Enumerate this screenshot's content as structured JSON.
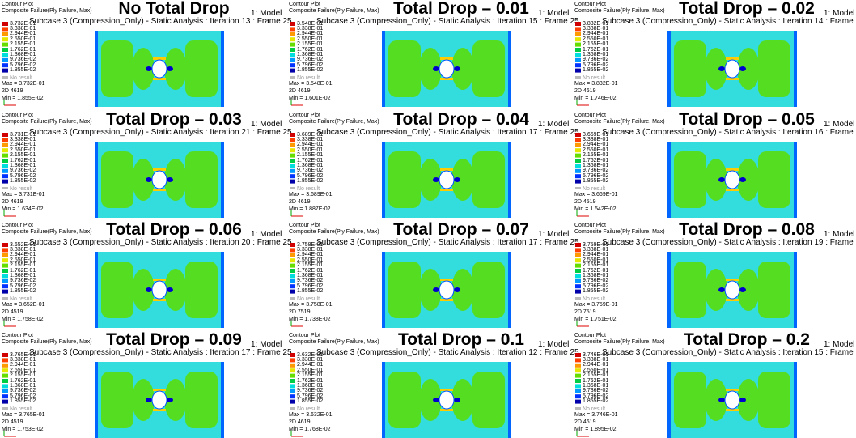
{
  "header_texts": {
    "plot": "Contour Plot",
    "quantity": "Composite Failure(Ply Failure, Max)",
    "model": "1: Model",
    "no_result": "No result"
  },
  "legend_values": [
    "3.338E-01",
    "2.944E-01",
    "2.550E-01",
    "2.155E-01",
    "1.762E-01",
    "1.368E-01",
    "9.736E-02",
    "5.796E-02",
    "1.855E-02"
  ],
  "panels": [
    {
      "title": "No Total Drop",
      "legend_top": "3.732E-01",
      "subcase": "Subcase 3 (Compression_Only) - Static Analysis : Iteration 13 : Frame 25",
      "max": "Max = 3.732E-01",
      "elem": "2D 4619",
      "min": "Min = 1.855E-02"
    },
    {
      "title": "Total Drop – 0.01",
      "legend_top": "3.548E-01",
      "subcase": "Subcase 3 (Compression_Only) - Static Analysis : Iteration 15 : Frame 25",
      "max": "Max = 3.548E-01",
      "elem": "2D 4619",
      "min": "Min = 1.601E-02"
    },
    {
      "title": "Total Drop – 0.02",
      "legend_top": "3.832E-01",
      "subcase": "Subcase 3 (Compression_Only) - Static Analysis : Iteration 14 : Frame 25",
      "max": "Max = 3.832E-01",
      "elem": "2D 4619",
      "min": "Min = 1.746E-02"
    },
    {
      "title": "Total Drop – 0.03",
      "legend_top": "3.731E-01",
      "subcase": "Subcase 3 (Compression_Only) - Static Analysis : Iteration 21 : Frame 25",
      "max": "Max = 3.731E-01",
      "elem": "2D 4619",
      "min": "Min = 1.634E-02"
    },
    {
      "title": "Total Drop – 0.04",
      "legend_top": "3.689E-01",
      "subcase": "Subcase 3 (Compression_Only) - Static Analysis : Iteration 17 : Frame 25",
      "max": "Max = 3.689E-01",
      "elem": "2D 4619",
      "min": "Min = 1.887E-02"
    },
    {
      "title": "Total Drop – 0.05",
      "legend_top": "3.669E-01",
      "subcase": "Subcase 3 (Compression_Only) - Static Analysis : Iteration 16 : Frame 25",
      "max": "Max = 3.669E-01",
      "elem": "2D 4519",
      "min": "Min = 1.542E-02"
    },
    {
      "title": "Total Drop – 0.06",
      "legend_top": "3.652E-01",
      "subcase": "Subcase 3 (Compression_Only) - Static Analysis : Iteration 20 : Frame 25",
      "max": "Max = 3.652E-01",
      "elem": "2D 4519",
      "min": "Min = 1.758E-02"
    },
    {
      "title": "Total Drop – 0.07",
      "legend_top": "3.758E-01",
      "subcase": "Subcase 3 (Compression_Only) - Static Analysis : Iteration 17 : Frame 25",
      "max": "Max = 3.758E-01",
      "elem": "2D 7519",
      "min": "Min = 1.738E-02"
    },
    {
      "title": "Total Drop – 0.08",
      "legend_top": "3.759E-01",
      "subcase": "Subcase 3 (Compression_Only) - Static Analysis : Iteration 19 : Frame 25",
      "max": "Max = 3.759E-01",
      "elem": "2D 7519",
      "min": "Min = 1.751E-02"
    },
    {
      "title": "Total Drop – 0.09",
      "legend_top": "3.765E-01",
      "subcase": "Subcase 3 (Compression_Only) - Static Analysis : Iteration 17 : Frame 25",
      "max": "Max = 3.765E-01",
      "elem": "2D 4519",
      "min": "Min = 1.753E-02"
    },
    {
      "title": "Total Drop – 0.1",
      "legend_top": "3.632E-01",
      "subcase": "Subcase 3 (Compression_Only) - Static Analysis : Iteration 12 : Frame 25",
      "max": "Max = 3.632E-01",
      "elem": "2D 4619",
      "min": "Min = 1.768E-02"
    },
    {
      "title": "Total Drop – 0.2",
      "legend_top": "3.746E-01",
      "subcase": "Subcase 3 (Compression_Only) - Static Analysis : Iteration 15 : Frame 25",
      "max": "Max = 3.746E-01",
      "elem": "2D 4619",
      "min": "Min = 1.895E-02"
    }
  ]
}
